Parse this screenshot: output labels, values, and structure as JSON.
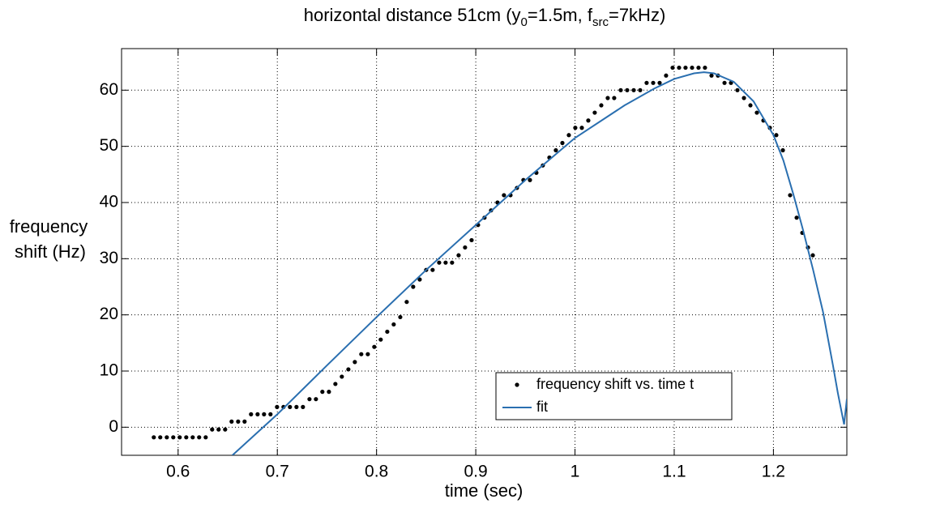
{
  "chart_data": {
    "type": "scatter",
    "title_parts": [
      {
        "text": "horizontal distance 51cm (y"
      },
      {
        "text": "0",
        "subscript": true
      },
      {
        "text": "=1.5m, f"
      },
      {
        "text": "src",
        "subscript": true
      },
      {
        "text": "=7kHz)"
      }
    ],
    "xlabel": "time (sec)",
    "ylabel_lines": [
      "frequency",
      "shift (Hz)"
    ],
    "xlim": [
      0.543,
      1.274
    ],
    "ylim": [
      -5,
      67.4
    ],
    "xticks": [
      0.6,
      0.7,
      0.8,
      0.9,
      1,
      1.1,
      1.2
    ],
    "yticks": [
      0,
      10,
      20,
      30,
      40,
      50,
      60
    ],
    "grid": true,
    "legend": "lower right",
    "series": [
      {
        "name": "frequency shift vs. time t",
        "color": "#000000",
        "style": "dot",
        "x": [
          0.5755,
          0.582,
          0.5886,
          0.5951,
          0.6016,
          0.6082,
          0.6147,
          0.6212,
          0.6278,
          0.6343,
          0.6408,
          0.6474,
          0.6539,
          0.6605,
          0.667,
          0.6735,
          0.6801,
          0.6866,
          0.6931,
          0.6997,
          0.7062,
          0.7127,
          0.7193,
          0.7258,
          0.7324,
          0.7389,
          0.7454,
          0.752,
          0.7585,
          0.765,
          0.7716,
          0.7781,
          0.7846,
          0.7912,
          0.7977,
          0.8042,
          0.8108,
          0.8173,
          0.8239,
          0.8304,
          0.8369,
          0.8435,
          0.85,
          0.8565,
          0.8631,
          0.8696,
          0.8761,
          0.8827,
          0.8892,
          0.8958,
          0.9023,
          0.9088,
          0.9154,
          0.9219,
          0.9284,
          0.935,
          0.9415,
          0.948,
          0.9546,
          0.9611,
          0.9676,
          0.9742,
          0.9807,
          0.9873,
          0.9938,
          1.0003,
          1.0069,
          1.0134,
          1.0199,
          1.0265,
          1.033,
          1.0395,
          1.0461,
          1.0526,
          1.0592,
          1.0657,
          1.0722,
          1.0788,
          1.0853,
          1.0918,
          1.0984,
          1.1049,
          1.1114,
          1.118,
          1.1245,
          1.131,
          1.1376,
          1.1441,
          1.1507,
          1.1572,
          1.1637,
          1.1703,
          1.1768,
          1.1833,
          1.1899,
          1.1964,
          1.2029,
          1.2095,
          1.2168,
          1.2234,
          1.2291,
          1.2348,
          1.2397
        ],
        "values": [
          -1.8,
          -1.8,
          -1.8,
          -1.8,
          -1.8,
          -1.8,
          -1.8,
          -1.8,
          -1.8,
          -0.4,
          -0.4,
          -0.4,
          1,
          1,
          1,
          2.3,
          2.3,
          2.3,
          2.3,
          3.6,
          3.6,
          3.6,
          3.6,
          3.6,
          5,
          5,
          6.3,
          6.3,
          7.7,
          9,
          10.3,
          11.6,
          13,
          13,
          14.3,
          15.6,
          17,
          18.3,
          19.6,
          22.3,
          25,
          26.3,
          28,
          28,
          29.3,
          29.3,
          29.3,
          30.6,
          32,
          33.3,
          36,
          37.3,
          38.6,
          40,
          41.3,
          41.3,
          42.6,
          44,
          44,
          45.3,
          46.6,
          48,
          49.3,
          50.6,
          52,
          53.3,
          53.3,
          54.6,
          56,
          57.3,
          58.6,
          58.6,
          60,
          60,
          60,
          60,
          61.3,
          61.3,
          61.3,
          62.6,
          64,
          64,
          64,
          64,
          64,
          64,
          62.6,
          62.6,
          61.3,
          61.3,
          60,
          58.6,
          57.3,
          56,
          54.6,
          53.3,
          52,
          49.3,
          41.3,
          37.3,
          34.6,
          32,
          30.6
        ]
      },
      {
        "name": "fit",
        "color": "#2a6fb0",
        "style": "line",
        "x": [
          0.6547,
          0.7,
          0.75,
          0.8,
          0.85,
          0.9,
          0.95,
          1.0,
          1.05,
          1.08,
          1.1,
          1.12,
          1.13,
          1.14,
          1.16,
          1.18,
          1.2,
          1.21,
          1.22,
          1.23,
          1.24,
          1.25,
          1.26,
          1.265,
          1.2712,
          1.274
        ],
        "values": [
          -5,
          2.3,
          11,
          19.6,
          28,
          36,
          44,
          51.5,
          57.3,
          60.3,
          62,
          63,
          63.2,
          63,
          61.5,
          58,
          52,
          47.5,
          41.5,
          35,
          28,
          20.5,
          11,
          6,
          0.5,
          5
        ]
      }
    ]
  }
}
